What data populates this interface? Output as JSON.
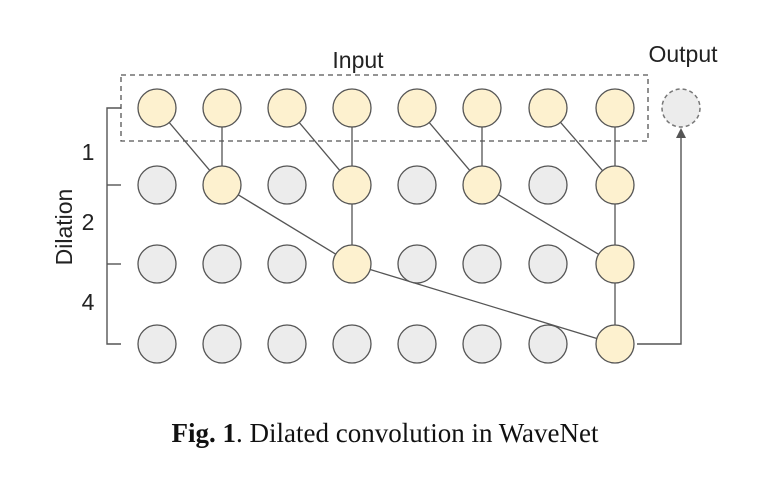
{
  "diagram": {
    "input_label": "Input",
    "output_label": "Output",
    "axis_label": "Dilation",
    "dilation_labels": [
      "1",
      "2",
      "4"
    ],
    "layers": [
      {
        "active": [
          true,
          true,
          true,
          true,
          true,
          true,
          true,
          true
        ]
      },
      {
        "active": [
          false,
          true,
          false,
          true,
          false,
          true,
          false,
          true
        ]
      },
      {
        "active": [
          false,
          false,
          false,
          true,
          false,
          false,
          false,
          true
        ]
      },
      {
        "active": [
          false,
          false,
          false,
          false,
          false,
          false,
          false,
          true
        ]
      }
    ],
    "edges": [
      [
        0,
        0,
        1,
        1
      ],
      [
        0,
        1,
        1,
        1
      ],
      [
        0,
        2,
        1,
        3
      ],
      [
        0,
        3,
        1,
        3
      ],
      [
        0,
        4,
        1,
        5
      ],
      [
        0,
        5,
        1,
        5
      ],
      [
        0,
        6,
        1,
        7
      ],
      [
        0,
        7,
        1,
        7
      ],
      [
        1,
        1,
        2,
        3
      ],
      [
        1,
        3,
        2,
        3
      ],
      [
        1,
        5,
        2,
        7
      ],
      [
        1,
        7,
        2,
        7
      ],
      [
        2,
        3,
        3,
        7
      ],
      [
        2,
        7,
        3,
        7
      ]
    ],
    "colors": {
      "active_fill": "#fdf1cf",
      "inactive_fill": "#ececec",
      "stroke": "#555555"
    }
  },
  "caption": {
    "prefix": "Fig. 1",
    "text": ". Dilated convolution in WaveNet"
  }
}
